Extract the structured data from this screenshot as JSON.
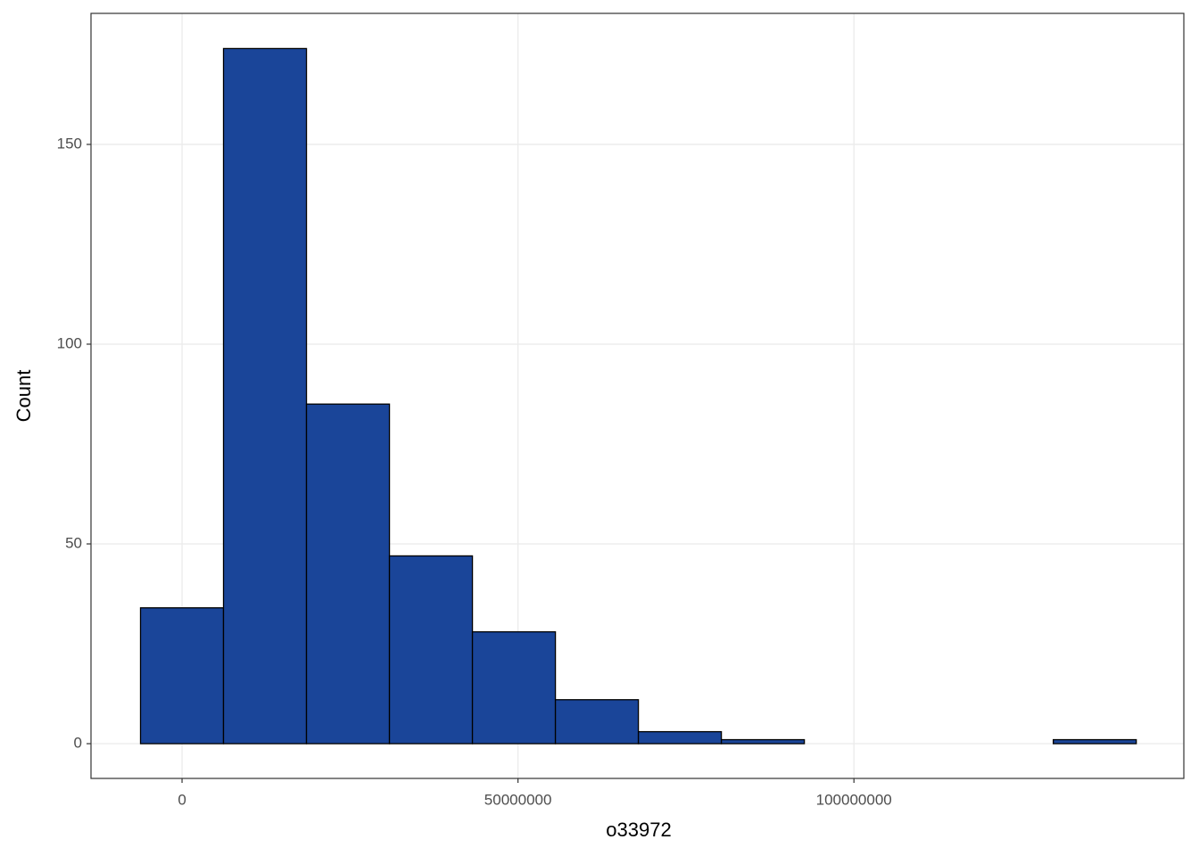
{
  "chart_data": {
    "type": "histogram",
    "x_label": "o33972",
    "y_label": "Count",
    "bins": [
      -6180000,
      6170000,
      18520000,
      30870000,
      43220000,
      55570000,
      67920000,
      80270000,
      92620000,
      104970000,
      117320000,
      129670000,
      142020000
    ],
    "values": [
      34,
      174,
      85,
      47,
      28,
      11,
      3,
      1,
      0,
      0,
      0,
      1
    ],
    "color": "#1a4599",
    "xlim": [
      -13550000,
      149100000
    ],
    "ylim": [
      -8.7,
      182.8
    ],
    "xticks": [
      0,
      50000000,
      100000000
    ],
    "yticks": [
      0,
      50,
      100,
      150
    ],
    "grid": true
  }
}
